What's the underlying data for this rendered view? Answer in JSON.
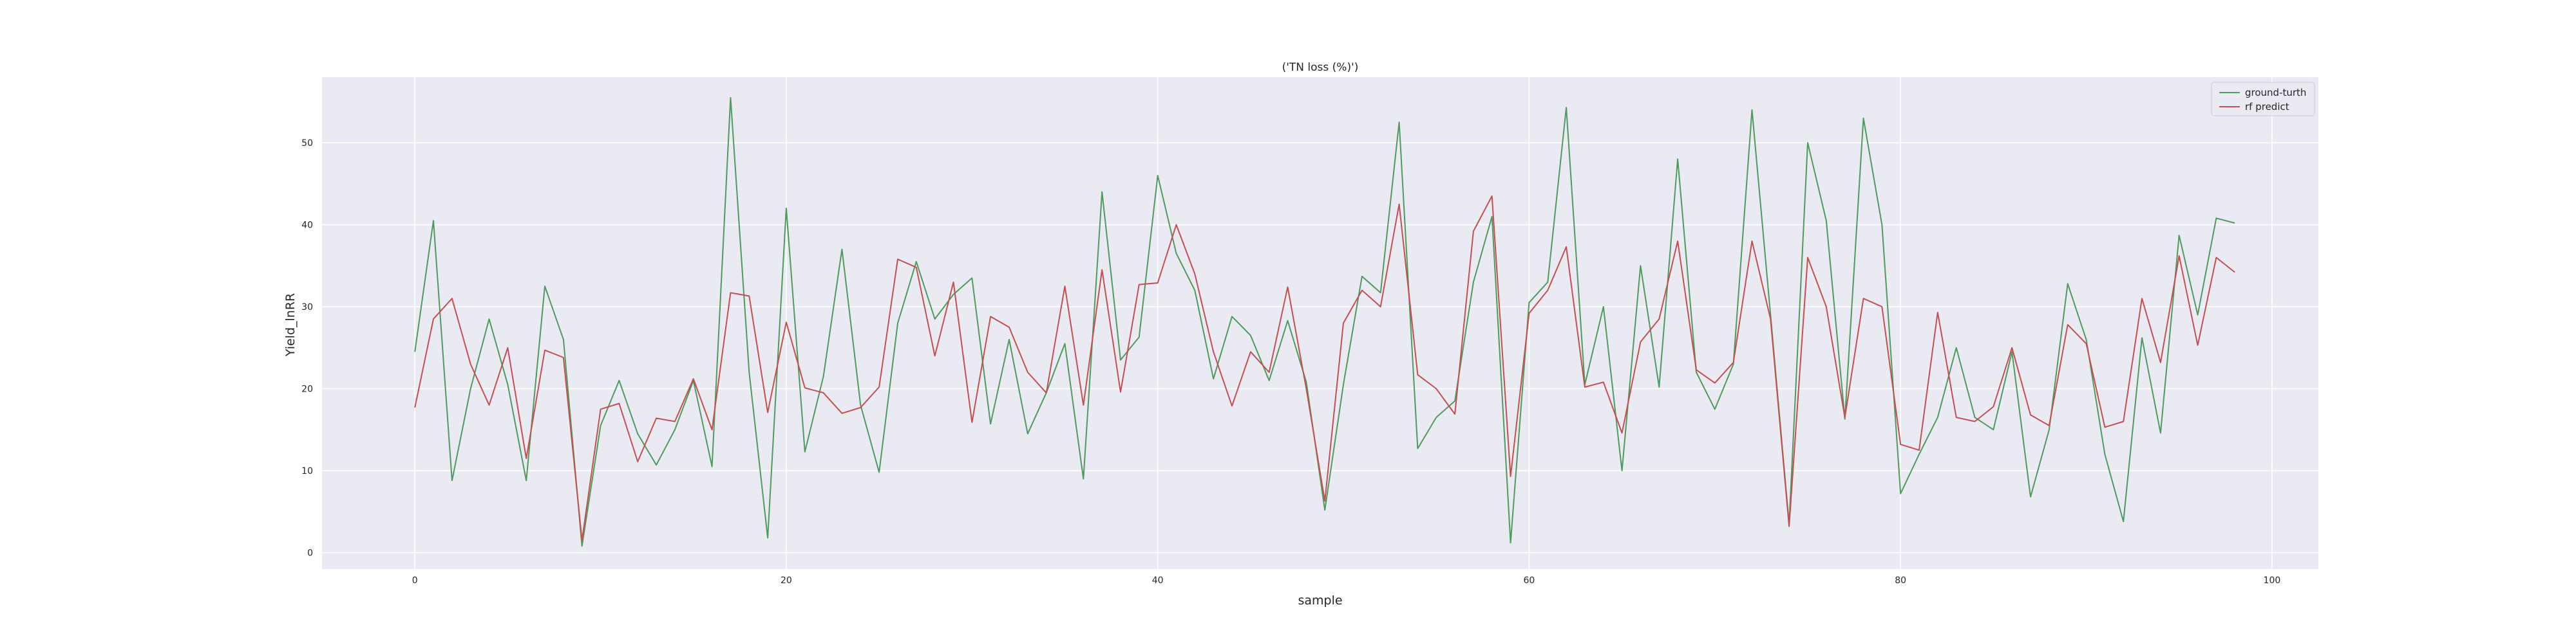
{
  "chart_data": {
    "type": "line",
    "title": "('TN loss (%)')",
    "xlabel": "sample",
    "ylabel": "Yield_lnRR",
    "xlim": [
      -5,
      102.5
    ],
    "ylim": [
      -2,
      58
    ],
    "xticks": [
      0,
      20,
      40,
      60,
      80,
      100
    ],
    "yticks": [
      0,
      10,
      20,
      30,
      40,
      50
    ],
    "grid": true,
    "legend_position": "top-right",
    "background": "#eaeaf2",
    "series": [
      {
        "name": "ground-turth",
        "color": "#4f9a5f",
        "values": [
          24.5,
          40.5,
          8.8,
          20,
          28.5,
          20.5,
          8.8,
          32.5,
          26,
          0.8,
          15.5,
          21,
          14.5,
          10.7,
          15,
          21,
          10.5,
          55.5,
          22,
          1.8,
          42,
          12.3,
          21.5,
          37,
          18,
          9.8,
          28,
          35.5,
          28.5,
          31.5,
          33.5,
          15.7,
          26,
          14.5,
          19.5,
          25.5,
          9,
          44,
          23.5,
          26.3,
          46,
          36.5,
          32,
          21.2,
          28.8,
          26.5,
          21,
          28.3,
          20.8,
          5.2,
          20.5,
          33.7,
          31.7,
          52.5,
          12.7,
          16.5,
          18.5,
          33,
          41,
          1.2,
          30.5,
          33,
          54.3,
          20.5,
          30,
          10,
          35,
          20.2,
          48,
          22,
          17.5,
          23,
          54,
          29,
          3.5,
          50,
          40.5,
          16.3,
          53,
          40,
          7.2,
          12,
          16.5,
          25,
          16.5,
          15,
          24.5,
          6.8,
          15,
          32.8,
          26,
          12,
          3.8,
          26.2,
          14.6,
          38.7,
          29,
          40.8,
          40.2
        ]
      },
      {
        "name": "rf predict",
        "color": "#c44e52",
        "values": [
          17.7,
          28.5,
          31,
          23,
          18,
          25,
          11.5,
          24.7,
          23.8,
          1.5,
          17.5,
          18.2,
          11.1,
          16.4,
          16,
          21.2,
          15,
          31.7,
          31.3,
          17.1,
          28.1,
          20.1,
          19.5,
          17,
          17.7,
          20.2,
          35.8,
          34.8,
          24,
          33,
          15.9,
          28.8,
          27.5,
          22,
          19.5,
          32.5,
          18,
          34.5,
          19.6,
          32.7,
          32.9,
          40,
          34,
          24.5,
          17.9,
          24.5,
          22,
          32.4,
          20,
          6.3,
          28,
          32,
          30,
          42.5,
          21.7,
          20,
          16.9,
          39.2,
          43.5,
          9.3,
          29.2,
          32,
          37.3,
          20.2,
          20.8,
          14.6,
          25.7,
          28.5,
          38,
          22.3,
          20.7,
          23.2,
          38,
          28.5,
          3.2,
          36,
          30,
          16.5,
          31,
          30,
          13.2,
          12.5,
          29.3,
          16.5,
          16,
          17.8,
          25,
          16.8,
          15.5,
          27.8,
          25.5,
          15.3,
          16,
          31,
          23.2,
          36.2,
          25.3,
          36,
          34.2
        ]
      }
    ]
  }
}
